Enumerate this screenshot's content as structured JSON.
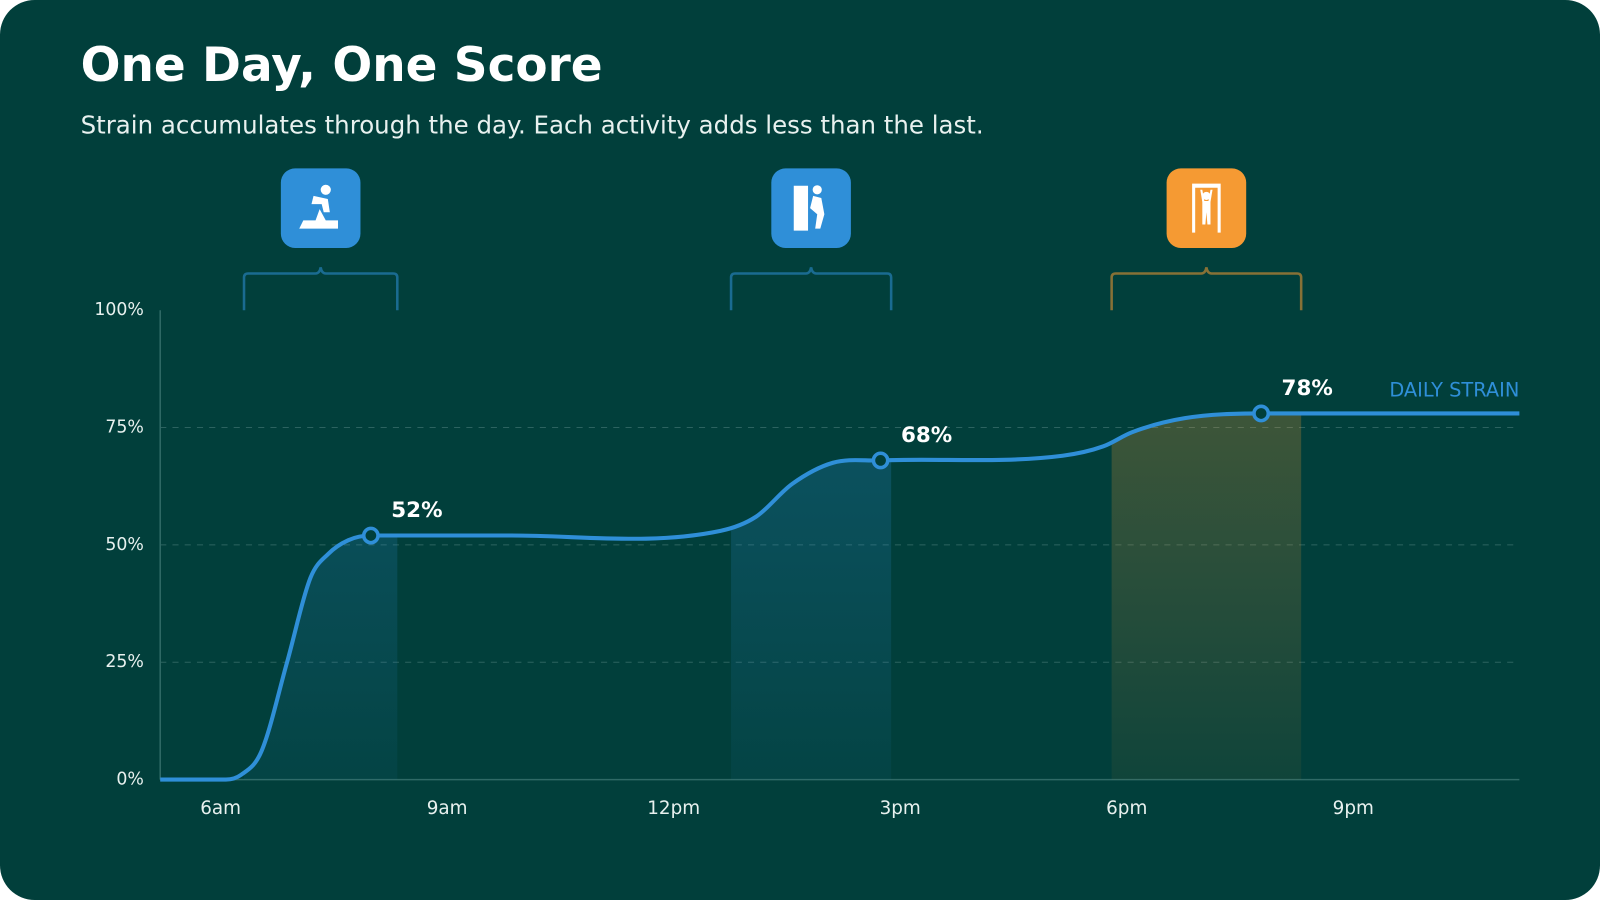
{
  "chart_data": {
    "type": "line",
    "title": "One Day, One Score",
    "subtitle": "Strain accumulates through the day. Each activity adds less than the last.",
    "x": [
      5.2,
      6.07,
      6.27,
      6.54,
      6.88,
      7.19,
      7.42,
      7.69,
      7.99,
      9.85,
      12.62,
      13.09,
      13.57,
      14.11,
      14.74,
      17.15,
      17.69,
      18.07,
      18.77,
      19.78,
      23.2
    ],
    "series": [
      {
        "name": "DAILY STRAIN",
        "color": "#2f8fd8",
        "values": [
          0,
          0,
          1,
          6,
          25,
          43,
          48,
          51,
          52,
          52,
          53,
          56,
          63,
          67.5,
          68,
          69,
          71,
          74,
          77,
          78,
          78
        ]
      }
    ],
    "xlim": [
      5.2,
      23.2
    ],
    "xticks": [
      {
        "value": 6,
        "label": "6am"
      },
      {
        "value": 9,
        "label": "9am"
      },
      {
        "value": 12,
        "label": "12pm"
      },
      {
        "value": 15,
        "label": "3pm"
      },
      {
        "value": 18,
        "label": "6pm"
      },
      {
        "value": 21,
        "label": "9pm"
      }
    ],
    "ylim": [
      0,
      100
    ],
    "yticks": [
      {
        "value": 0,
        "label": "0%"
      },
      {
        "value": 25,
        "label": "25%"
      },
      {
        "value": 50,
        "label": "50%"
      },
      {
        "value": 75,
        "label": "75%"
      },
      {
        "value": 100,
        "label": "100%"
      }
    ],
    "grid": true,
    "annotations": [
      {
        "x": 7.99,
        "y": 52,
        "label": "52%"
      },
      {
        "x": 14.74,
        "y": 68,
        "label": "68%"
      },
      {
        "x": 19.78,
        "y": 78,
        "label": "78%"
      }
    ],
    "activities": [
      {
        "start": 6.31,
        "end": 8.34,
        "color": "#2f8fd8"
      },
      {
        "start": 12.76,
        "end": 14.88,
        "color": "#2f8fd8"
      },
      {
        "start": 17.8,
        "end": 20.31,
        "color": "#f59a33"
      }
    ]
  }
}
